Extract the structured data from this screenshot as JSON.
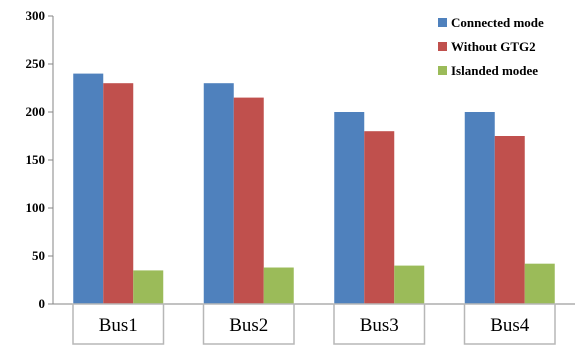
{
  "chart_data": {
    "type": "bar",
    "categories": [
      "Bus1",
      "Bus2",
      "Bus3",
      "Bus4"
    ],
    "series": [
      {
        "name": "Connected mode",
        "values": [
          240,
          230,
          200,
          200
        ],
        "color": "#4F81BD"
      },
      {
        "name": "Without GTG2",
        "values": [
          230,
          215,
          180,
          175
        ],
        "color": "#C0504D"
      },
      {
        "name": "Islanded modee",
        "values": [
          35,
          38,
          40,
          42
        ],
        "color": "#9BBB59"
      }
    ],
    "ylim": [
      0,
      300
    ],
    "yticks": [
      0,
      50,
      100,
      150,
      200,
      250,
      300
    ],
    "grid": false,
    "legend_position": "top-right",
    "title": "",
    "xlabel": "",
    "ylabel": ""
  }
}
